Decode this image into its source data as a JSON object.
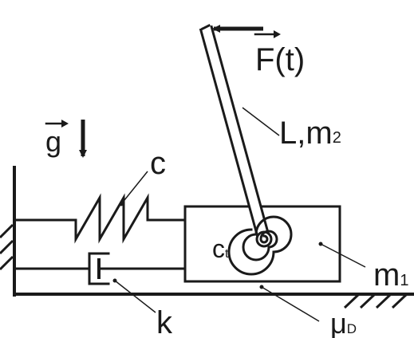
{
  "labels": {
    "force": "F(t)",
    "gravity": "g",
    "damper": "c",
    "rod": "L,m",
    "rod_sub": "2",
    "spring": "k",
    "block": "m",
    "block_sub": "1",
    "torsion": "c",
    "torsion_sub": "t",
    "friction": "μ",
    "friction_sub": "D"
  },
  "colors": {
    "ink": "#1a1a1a",
    "background": "#ffffff"
  }
}
